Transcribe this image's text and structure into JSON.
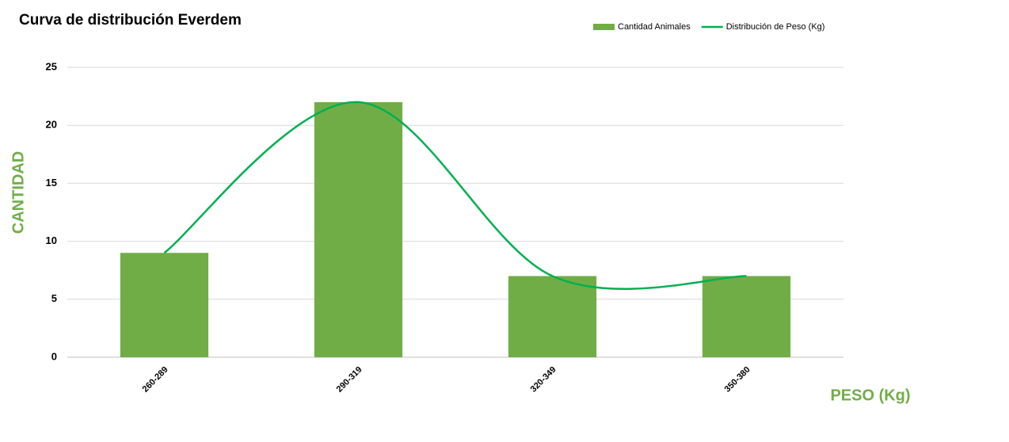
{
  "chart_data": {
    "type": "combo",
    "title": "Curva de distribución Everdem",
    "x_label": "PESO (Kg)",
    "y_label": "CANTIDAD",
    "categories": [
      "260-289",
      "290-319",
      "320-349",
      "350-380"
    ],
    "series": [
      {
        "name": "Cantidad Animales",
        "type": "bar",
        "color": "#70ad47",
        "values": [
          9,
          22,
          7,
          7
        ]
      },
      {
        "name": "Distribución de Peso (Kg)",
        "type": "line",
        "smooth": true,
        "color": "#00b050",
        "values": [
          9,
          22,
          7,
          7
        ]
      }
    ],
    "ylim": [
      0,
      25
    ],
    "yticks": [
      0,
      5,
      10,
      15,
      20,
      25
    ],
    "grid": true,
    "legend": "top-right"
  }
}
